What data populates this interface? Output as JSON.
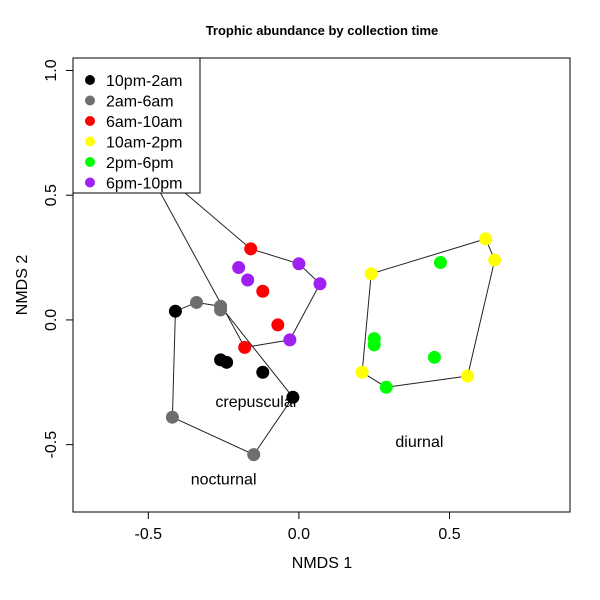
{
  "chart_data": {
    "type": "scatter",
    "title": "Trophic abundance by collection time",
    "xlabel": "NMDS 1",
    "ylabel": "NMDS 2",
    "xlim": [
      -0.75,
      0.9
    ],
    "ylim": [
      -0.77,
      1.05
    ],
    "x_ticks": [
      -0.5,
      0.0,
      0.5
    ],
    "x_tick_labels": [
      "-0.5",
      "0.0",
      "0.5"
    ],
    "y_ticks": [
      -0.5,
      0.0,
      0.5,
      1.0
    ],
    "y_tick_labels": [
      "-0.5",
      "0.0",
      "0.5",
      "1.0"
    ],
    "grid": false,
    "legend_position": "top-left",
    "series": [
      {
        "name": "10pm-2am",
        "color": "#000000",
        "points": [
          [
            -0.41,
            0.035
          ],
          [
            -0.26,
            -0.16
          ],
          [
            -0.24,
            -0.17
          ],
          [
            -0.12,
            -0.21
          ],
          [
            -0.02,
            -0.31
          ]
        ]
      },
      {
        "name": "2am-6am",
        "color": "#6e6e6e",
        "points": [
          [
            -0.34,
            0.07
          ],
          [
            -0.26,
            0.055
          ],
          [
            -0.26,
            0.04
          ],
          [
            -0.42,
            -0.39
          ],
          [
            -0.15,
            -0.54
          ]
        ]
      },
      {
        "name": "6am-10am",
        "color": "#ff0000",
        "points": [
          [
            -0.16,
            0.285
          ],
          [
            -0.12,
            0.115
          ],
          [
            -0.07,
            -0.02
          ],
          [
            -0.18,
            -0.11
          ]
        ]
      },
      {
        "name": "10am-2pm",
        "color": "#ffff00",
        "points": [
          [
            0.24,
            0.185
          ],
          [
            0.62,
            0.325
          ],
          [
            0.65,
            0.24
          ],
          [
            0.21,
            -0.21
          ],
          [
            0.56,
            -0.225
          ]
        ]
      },
      {
        "name": "2pm-6pm",
        "color": "#00ff00",
        "points": [
          [
            0.47,
            0.23
          ],
          [
            0.25,
            -0.075
          ],
          [
            0.25,
            -0.1
          ],
          [
            0.45,
            -0.15
          ],
          [
            0.29,
            -0.27
          ]
        ]
      },
      {
        "name": "6pm-10pm",
        "color": "#a020f0",
        "points": [
          [
            -0.2,
            0.21
          ],
          [
            -0.17,
            0.16
          ],
          [
            0.0,
            0.225
          ],
          [
            0.07,
            0.145
          ],
          [
            -0.03,
            -0.08
          ]
        ]
      }
    ],
    "hulls": [
      {
        "name": "nocturnal",
        "points": [
          [
            -0.41,
            0.035
          ],
          [
            -0.34,
            0.07
          ],
          [
            -0.26,
            0.055
          ],
          [
            -0.02,
            -0.31
          ],
          [
            -0.15,
            -0.54
          ],
          [
            -0.42,
            -0.39
          ]
        ]
      },
      {
        "name": "crepuscular",
        "points": [
          [
            -0.16,
            0.285
          ],
          [
            0.0,
            0.225
          ],
          [
            0.07,
            0.145
          ],
          [
            -0.03,
            -0.08
          ],
          [
            -0.18,
            -0.11
          ],
          [
            -0.53,
            0.665
          ]
        ]
      },
      {
        "name": "diurnal",
        "points": [
          [
            0.24,
            0.185
          ],
          [
            0.62,
            0.325
          ],
          [
            0.65,
            0.24
          ],
          [
            0.56,
            -0.225
          ],
          [
            0.29,
            -0.27
          ],
          [
            0.21,
            -0.21
          ]
        ]
      }
    ],
    "annotations": [
      {
        "text": "crepuscular",
        "x": -0.14,
        "y": -0.35
      },
      {
        "text": "nocturnal",
        "x": -0.25,
        "y": -0.66
      },
      {
        "text": "diurnal",
        "x": 0.4,
        "y": -0.51
      }
    ]
  }
}
